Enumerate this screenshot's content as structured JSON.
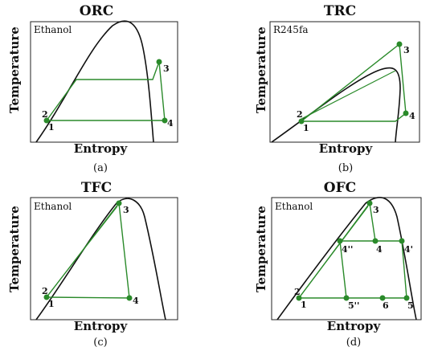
{
  "panels": {
    "a": {
      "title": "ORC",
      "fluid": "Ethanol",
      "ylabel": "Temperature",
      "xlabel": "Entropy",
      "caption": "(a)",
      "points": [
        "1",
        "2",
        "3",
        "4"
      ]
    },
    "b": {
      "title": "TRC",
      "fluid": "R245fa",
      "ylabel": "Temperature",
      "xlabel": "Entropy",
      "caption": "(b)",
      "points": [
        "1",
        "2",
        "3",
        "4"
      ]
    },
    "c": {
      "title": "TFC",
      "fluid": "Ethanol",
      "ylabel": "Temperature",
      "xlabel": "Entropy",
      "caption": "(c)",
      "points": [
        "1",
        "2",
        "3",
        "4"
      ]
    },
    "d": {
      "title": "OFC",
      "fluid": "Ethanol",
      "ylabel": "Temperature",
      "xlabel": "Entropy",
      "caption": "(d)",
      "points": [
        "1",
        "2",
        "3",
        "4''",
        "4",
        "4'",
        "5''",
        "6",
        "5"
      ]
    }
  },
  "colors": {
    "cycle": "#2a8a2a",
    "dome": "#111111",
    "point": "#2a8a2a"
  }
}
